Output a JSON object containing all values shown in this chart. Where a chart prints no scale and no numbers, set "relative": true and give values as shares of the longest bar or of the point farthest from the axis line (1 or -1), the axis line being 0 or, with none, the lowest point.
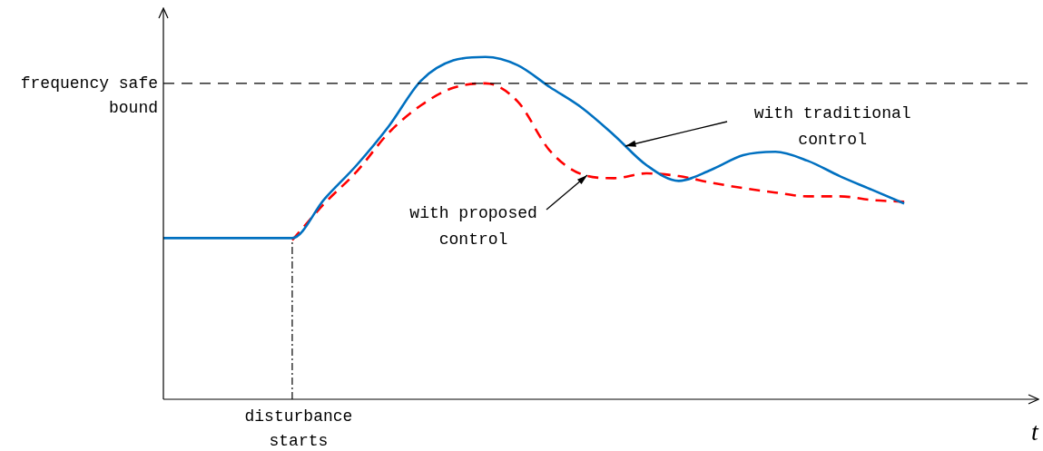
{
  "chart_data": {
    "type": "line",
    "relative": true,
    "xlabel": "t",
    "legend": false,
    "marker": "none",
    "annotations": [
      "disturbance starts"
    ],
    "categories": [
      null,
      null,
      null,
      null,
      null,
      null,
      null,
      null,
      null,
      null,
      null,
      null,
      null,
      null,
      null,
      null,
      null,
      null,
      null,
      null,
      null,
      null,
      null,
      null,
      null,
      null,
      null,
      null
    ],
    "series": [
      {
        "name": "with traditional control",
        "color": "#0070c0",
        "line_style": "solid",
        "values": [
          0.471,
          0.471,
          0.471,
          0.471,
          0.471,
          0.585,
          0.684,
          0.798,
          0.931,
          0.99,
          1,
          0.976,
          0.912,
          0.851,
          0.771,
          0.684,
          0.638,
          0.67,
          0.713,
          0.723,
          0.697,
          0.652,
          0.612,
          0.572,
          null,
          null,
          null,
          null
        ]
      },
      {
        "name": "with proposed control",
        "color": "#ff0000",
        "line_style": "dashed",
        "values": [
          null,
          null,
          null,
          null,
          0.465,
          0.572,
          0.665,
          0.779,
          0.859,
          0.91,
          0.923,
          0.87,
          0.726,
          0.657,
          0.646,
          0.66,
          0.652,
          0.633,
          0.617,
          0.604,
          0.593,
          0.593,
          0.582,
          0.577,
          null,
          null,
          null,
          null
        ]
      }
    ],
    "ref_lines": [
      {
        "axis": "y",
        "value": 0.923,
        "label": "frequency safe bound",
        "line_style": "dashed",
        "color": "#000000"
      }
    ]
  }
}
